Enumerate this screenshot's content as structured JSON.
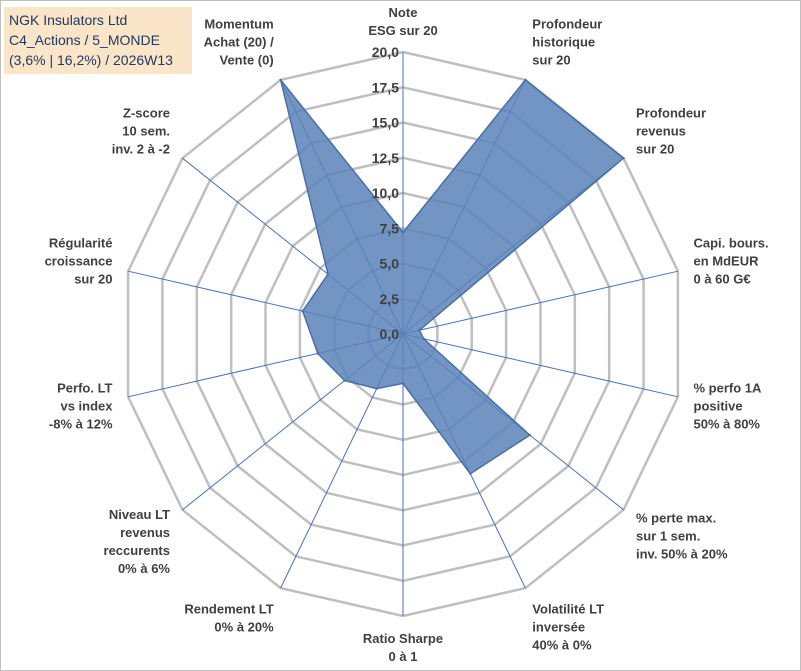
{
  "header": {
    "line1": "NGK Insulators Ltd",
    "line2": "C4_Actions / 5_MONDE",
    "line3": "(3,6% | 16,2%) / 2026W13"
  },
  "colors": {
    "fill": "#5b83b8",
    "stroke": "#4a6fa5",
    "grid": "#bfbfbf",
    "spoke": "#4472c4",
    "title_bg": "#fbe5c8"
  },
  "chart_data": {
    "type": "radar",
    "rmax": 20,
    "ticks": [
      {
        "value": 0,
        "label": "0,0"
      },
      {
        "value": 2.5,
        "label": "2,5"
      },
      {
        "value": 5,
        "label": "5,0"
      },
      {
        "value": 7.5,
        "label": "7,5"
      },
      {
        "value": 10,
        "label": "10,0"
      },
      {
        "value": 12.5,
        "label": "12,5"
      },
      {
        "value": 15,
        "label": "15,0"
      },
      {
        "value": 17.5,
        "label": "17,5"
      },
      {
        "value": 20,
        "label": "20,0"
      }
    ],
    "axes": [
      {
        "lines": [
          "Note",
          "ESG sur 20"
        ],
        "value": 7.2
      },
      {
        "lines": [
          "Profondeur",
          "historique",
          "sur 20"
        ],
        "value": 20
      },
      {
        "lines": [
          "Profondeur",
          "revenus",
          "sur 20"
        ],
        "value": 20
      },
      {
        "lines": [
          "Capi. bours.",
          "en MdEUR",
          "0 à 60 G€"
        ],
        "value": 1.2
      },
      {
        "lines": [
          "% perfo 1A",
          "positive",
          "50% à 80%"
        ],
        "value": 1.5
      },
      {
        "lines": [
          "% perte max.",
          "sur 1 sem.",
          "inv. 50% à 20%"
        ],
        "value": 11.5
      },
      {
        "lines": [
          "Volatilité LT",
          "inversée",
          "40% à 0%"
        ],
        "value": 11
      },
      {
        "lines": [
          "Ratio Sharpe",
          "0 à 1"
        ],
        "value": 3.5
      },
      {
        "lines": [
          "Rendement LT",
          "0% à 20%"
        ],
        "value": 4.3
      },
      {
        "lines": [
          "Niveau LT",
          "revenus",
          "reccurents",
          "0% à 6%"
        ],
        "value": 5.3
      },
      {
        "lines": [
          "Perfo. LT",
          "vs index",
          "-8% à 12%"
        ],
        "value": 6.2
      },
      {
        "lines": [
          "Régularité",
          "croissance",
          "sur 20"
        ],
        "value": 7.3
      },
      {
        "lines": [
          "Z-score",
          "10 sem.",
          "inv. 2 à -2"
        ],
        "value": 6.8
      },
      {
        "lines": [
          "Momentum",
          "Achat (20) /",
          "Vente (0)"
        ],
        "value": 20
      }
    ]
  }
}
